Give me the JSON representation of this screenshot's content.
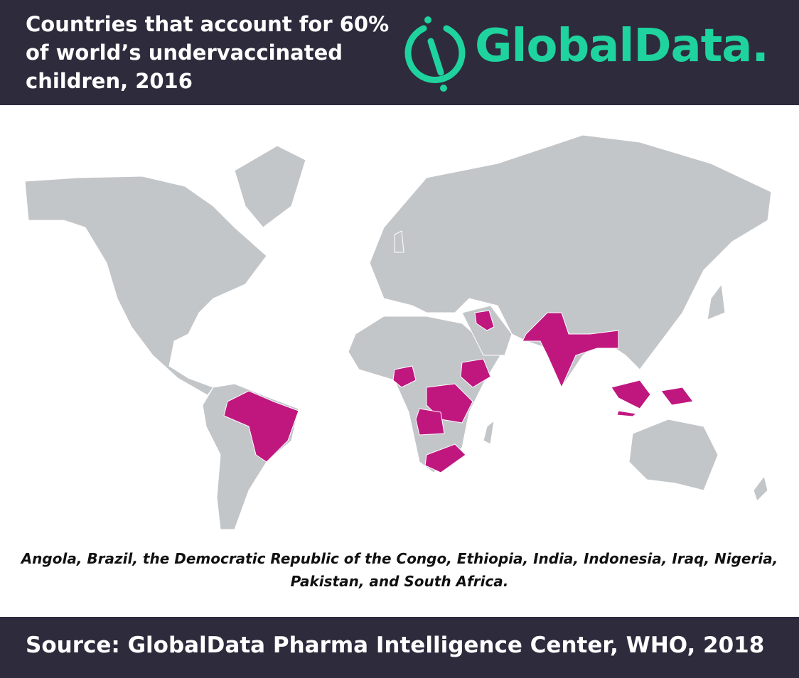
{
  "header": {
    "title": "Countries that account for 60% of world’s undervaccinated children, 2016",
    "logo": "GlobalData."
  },
  "caption": "Angola, Brazil, the Democratic Republic of the Congo, Ethiopia, India, Indonesia, Iraq, Nigeria, Pakistan, and South Africa.",
  "footer": {
    "source": "Source: GlobalData Pharma Intelligence Center, WHO, 2018"
  }
}
